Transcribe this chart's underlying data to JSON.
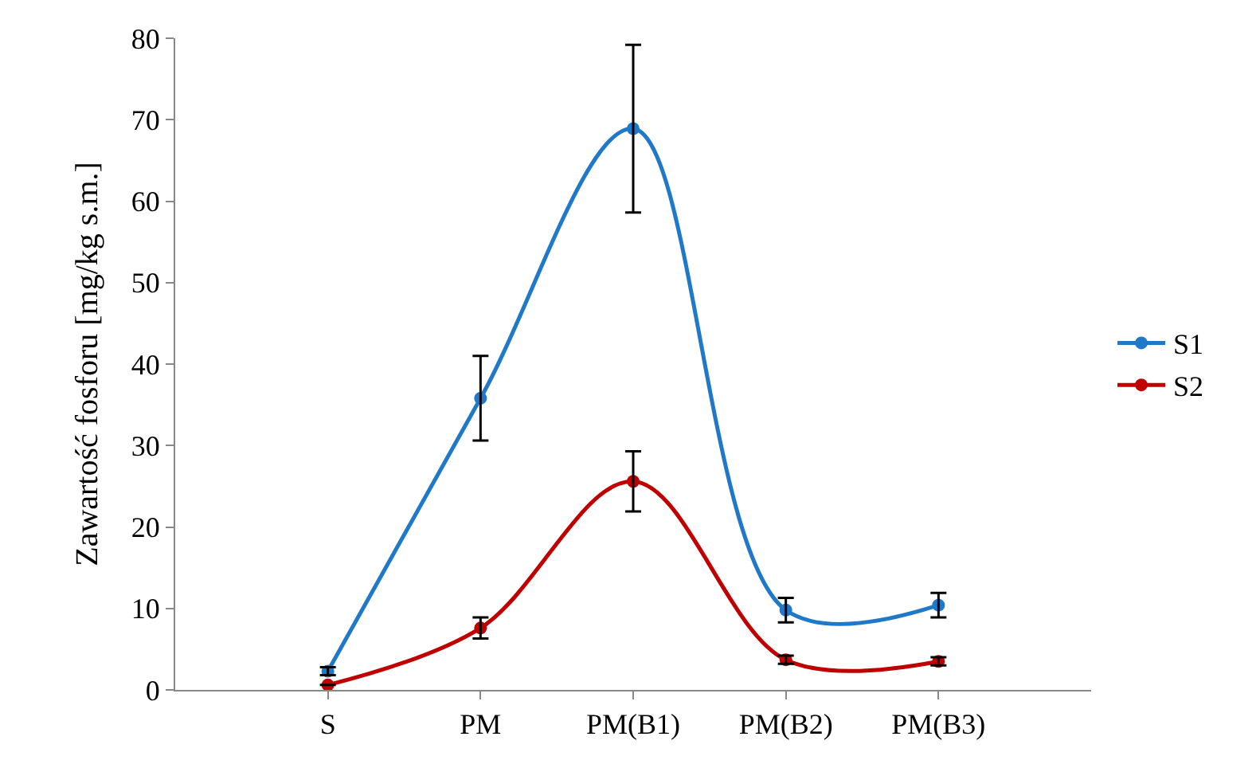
{
  "chart_data": {
    "type": "line",
    "ylabel": "Zawartość fosforu [mg/kg s.m.]",
    "categories": [
      "S",
      "PM",
      "PM(B1)",
      "PM(B2)",
      "PM(B3)"
    ],
    "series": [
      {
        "name": "S1",
        "color": "#1f78c8",
        "values": [
          2.3,
          35.8,
          68.9,
          9.8,
          10.4
        ],
        "errors": [
          0.5,
          5.2,
          10.3,
          1.5,
          1.5
        ]
      },
      {
        "name": "S2",
        "color": "#c00000",
        "values": [
          0.6,
          7.6,
          25.6,
          3.7,
          3.5
        ],
        "errors": [
          null,
          1.3,
          3.7,
          0.5,
          0.5
        ]
      }
    ],
    "ylim": [
      0,
      80
    ],
    "yticks": [
      0,
      10,
      20,
      30,
      40,
      50,
      60,
      70,
      80
    ],
    "legend": "right",
    "marker": "circle",
    "line_style": "solid"
  }
}
